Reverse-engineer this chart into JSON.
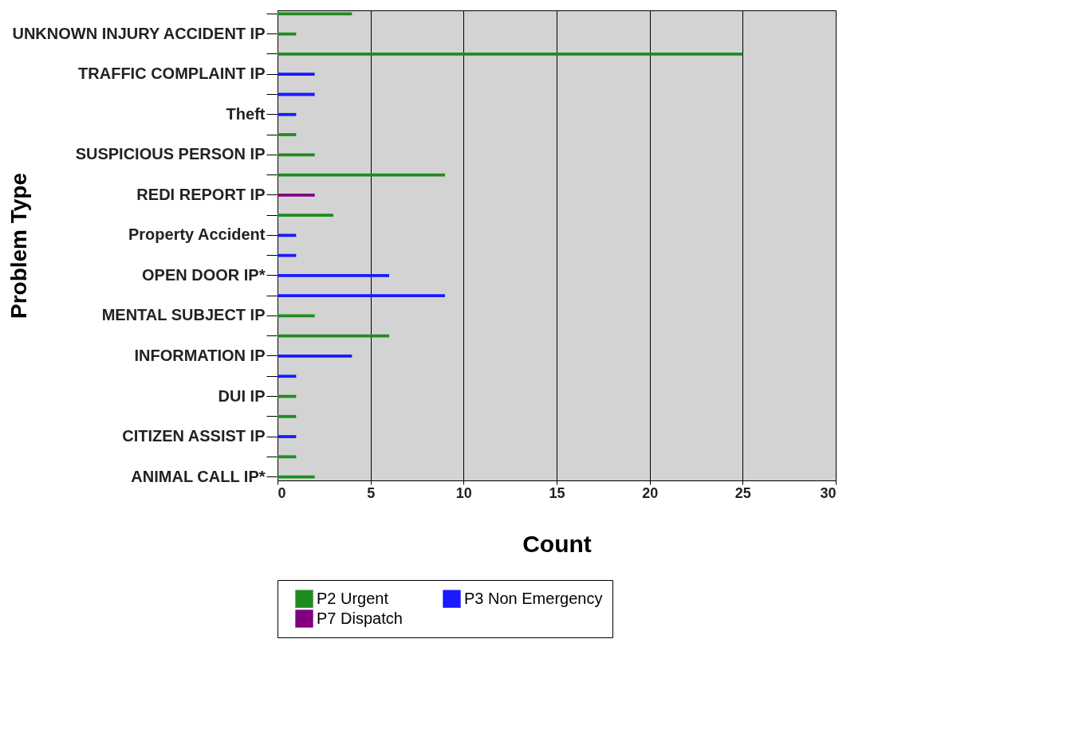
{
  "chart_data": {
    "type": "bar",
    "orientation": "horizontal",
    "xlabel": "Count",
    "ylabel": "Problem Type",
    "categories": [
      null,
      "UNKNOWN INJURY ACCIDENT IP",
      null,
      "TRAFFIC COMPLAINT IP",
      null,
      "Theft",
      null,
      "SUSPICIOUS PERSON IP",
      null,
      "REDI REPORT IP",
      null,
      "Property Accident",
      null,
      "OPEN DOOR IP*",
      null,
      "MENTAL SUBJECT IP",
      null,
      "INFORMATION IP",
      null,
      "DUI IP",
      null,
      "CITIZEN ASSIST IP",
      null,
      "ANIMAL CALL IP*"
    ],
    "series": [
      {
        "name": "P2 Urgent",
        "color": "#1e8c1e",
        "values": [
          4,
          1,
          25,
          null,
          null,
          null,
          1,
          2,
          9,
          null,
          3,
          null,
          null,
          null,
          null,
          2,
          6,
          null,
          null,
          1,
          1,
          null,
          1,
          2
        ]
      },
      {
        "name": "P3 Non Emergency",
        "color": "#1a1aff",
        "values": [
          null,
          null,
          null,
          2,
          2,
          1,
          null,
          null,
          null,
          null,
          null,
          1,
          1,
          6,
          9,
          null,
          null,
          4,
          1,
          null,
          null,
          1,
          null,
          null
        ]
      },
      {
        "name": "P7 Dispatch",
        "color": "#800080",
        "values": [
          null,
          null,
          null,
          null,
          null,
          null,
          null,
          null,
          null,
          2,
          null,
          null,
          null,
          null,
          null,
          null,
          null,
          null,
          null,
          null,
          null,
          null,
          null,
          null
        ]
      }
    ],
    "xlim": [
      0,
      30
    ],
    "xticks": [
      0,
      5,
      10,
      15,
      20,
      25,
      30
    ],
    "grid": "x",
    "legend": "bottom"
  }
}
